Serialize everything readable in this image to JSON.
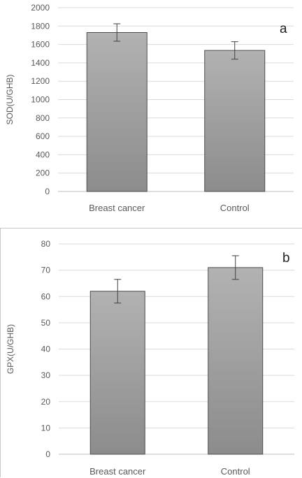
{
  "chart_data": [
    {
      "type": "bar",
      "panel_label": "a",
      "categories": [
        "Breast cancer",
        "Control"
      ],
      "values": [
        1730,
        1535
      ],
      "error": [
        95,
        95
      ],
      "ylabel": "SOD(U/GHB)",
      "ylim": [
        0,
        2000
      ],
      "yticks": [
        0,
        200,
        400,
        600,
        800,
        1000,
        1200,
        1400,
        1600,
        1800,
        2000
      ],
      "grid": true,
      "bar_color": "#8c8c8c"
    },
    {
      "type": "bar",
      "panel_label": "b",
      "categories": [
        "Breast cancer",
        "Control"
      ],
      "values": [
        62,
        71
      ],
      "error": [
        4.5,
        4.5
      ],
      "ylabel": "GPX(U/GHB)",
      "ylim": [
        0,
        80
      ],
      "yticks": [
        0,
        10,
        20,
        30,
        40,
        50,
        60,
        70,
        80
      ],
      "grid": true,
      "bar_color": "#8c8c8c"
    }
  ]
}
